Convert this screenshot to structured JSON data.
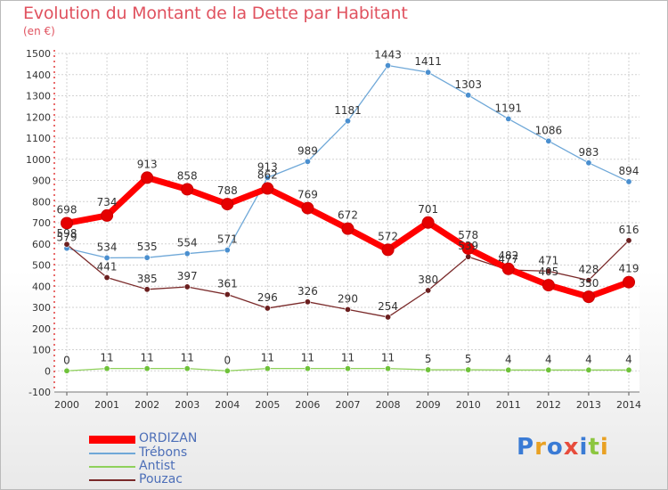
{
  "header": {
    "title": "Evolution du Montant de la Dette par Habitant",
    "unit": "(en €)"
  },
  "logo": {
    "text": "Proxiti",
    "letter_colors": [
      "#3a7bd5",
      "#e9a123",
      "#3a7bd5",
      "#e74c3c",
      "#3a7bd5",
      "#8cc63f",
      "#e9a123"
    ]
  },
  "chart_data": {
    "type": "line",
    "title": "Evolution du Montant de la Dette par Habitant",
    "ylabel": "(en €)",
    "xlabel": "",
    "x": [
      "2000",
      "2001",
      "2002",
      "2003",
      "2004",
      "2005",
      "2006",
      "2007",
      "2008",
      "2009",
      "2010",
      "2011",
      "2012",
      "2013",
      "2014"
    ],
    "ylim": [
      -100,
      1500
    ],
    "yticks": [
      "-100",
      "0",
      "100",
      "200",
      "300",
      "400",
      "500",
      "600",
      "700",
      "800",
      "900",
      "1000",
      "1100",
      "1200",
      "1300",
      "1400",
      "1500"
    ],
    "grid": true,
    "legend_position": "bottom-left",
    "series": [
      {
        "name": "ORDIZAN",
        "color": "#ff0000",
        "marker_color": "#e50000",
        "width": 7,
        "values": [
          698,
          734,
          913,
          858,
          788,
          862,
          769,
          672,
          572,
          701,
          578,
          482,
          405,
          350,
          419
        ]
      },
      {
        "name": "Trébons",
        "color": "#6fa8d8",
        "marker_color": "#4a8fcf",
        "width": 1.3,
        "values": [
          579,
          534,
          535,
          554,
          571,
          913,
          989,
          1181,
          1443,
          1411,
          1303,
          1191,
          1086,
          983,
          894
        ]
      },
      {
        "name": "Antist",
        "color": "#8fd15b",
        "marker_color": "#6fc23a",
        "width": 1.3,
        "values": [
          0,
          11,
          11,
          11,
          0,
          11,
          11,
          11,
          11,
          5,
          5,
          4,
          4,
          4,
          4
        ]
      },
      {
        "name": "Pouzac",
        "color": "#7a2a2a",
        "marker_color": "#6b1f1f",
        "width": 1.3,
        "values": [
          598,
          441,
          385,
          397,
          361,
          296,
          326,
          290,
          254,
          380,
          539,
          477,
          471,
          428,
          616
        ]
      }
    ]
  }
}
